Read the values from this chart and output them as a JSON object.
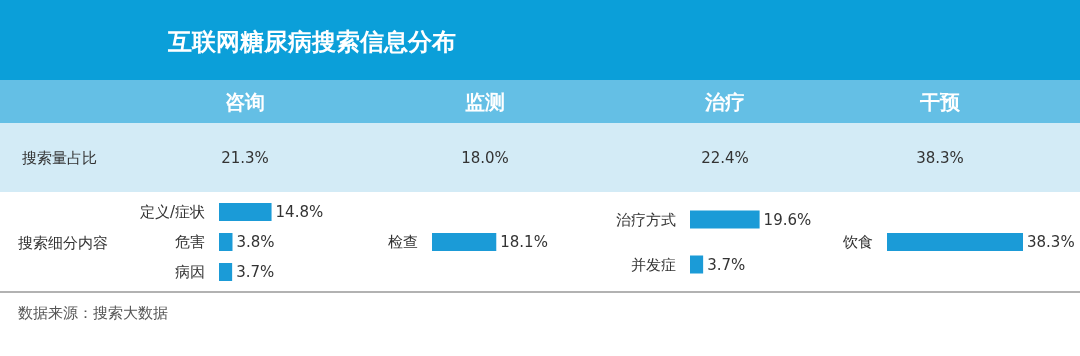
{
  "chart_data": [
    {
      "type": "other",
      "title": "互联网糖尿病搜索信息分布",
      "categories": [
        "咨询",
        "监测",
        "治疗",
        "干预"
      ],
      "values": [
        21.3,
        18.0,
        22.4,
        38.3
      ],
      "value_labels": [
        "21.3%",
        "18.0%",
        "22.4%",
        "38.3%"
      ],
      "annotations": [
        "搜索量占比",
        "搜索细分内容",
        "数据来源：搜索大数据"
      ]
    },
    {
      "type": "bar",
      "orientation": "horizontal",
      "categories": [
        "定义/症状",
        "危害",
        "病因"
      ],
      "values": [
        14.8,
        3.8,
        3.7
      ],
      "value_labels": [
        "14.8%",
        "3.8%",
        "3.7%"
      ],
      "color": "#1b9bd7"
    },
    {
      "type": "bar",
      "orientation": "horizontal",
      "categories": [
        "检查"
      ],
      "values": [
        18.1
      ],
      "value_labels": [
        "18.1%"
      ],
      "color": "#1b9bd7"
    },
    {
      "type": "bar",
      "orientation": "horizontal",
      "categories": [
        "治疗方式",
        "并发症"
      ],
      "values": [
        19.6,
        3.7
      ],
      "value_labels": [
        "19.6%",
        "3.7%"
      ],
      "color": "#1b9bd7"
    },
    {
      "type": "bar",
      "orientation": "horizontal",
      "categories": [
        "饮食"
      ],
      "values": [
        38.3
      ],
      "value_labels": [
        "38.3%"
      ],
      "color": "#1b9bd7"
    }
  ]
}
